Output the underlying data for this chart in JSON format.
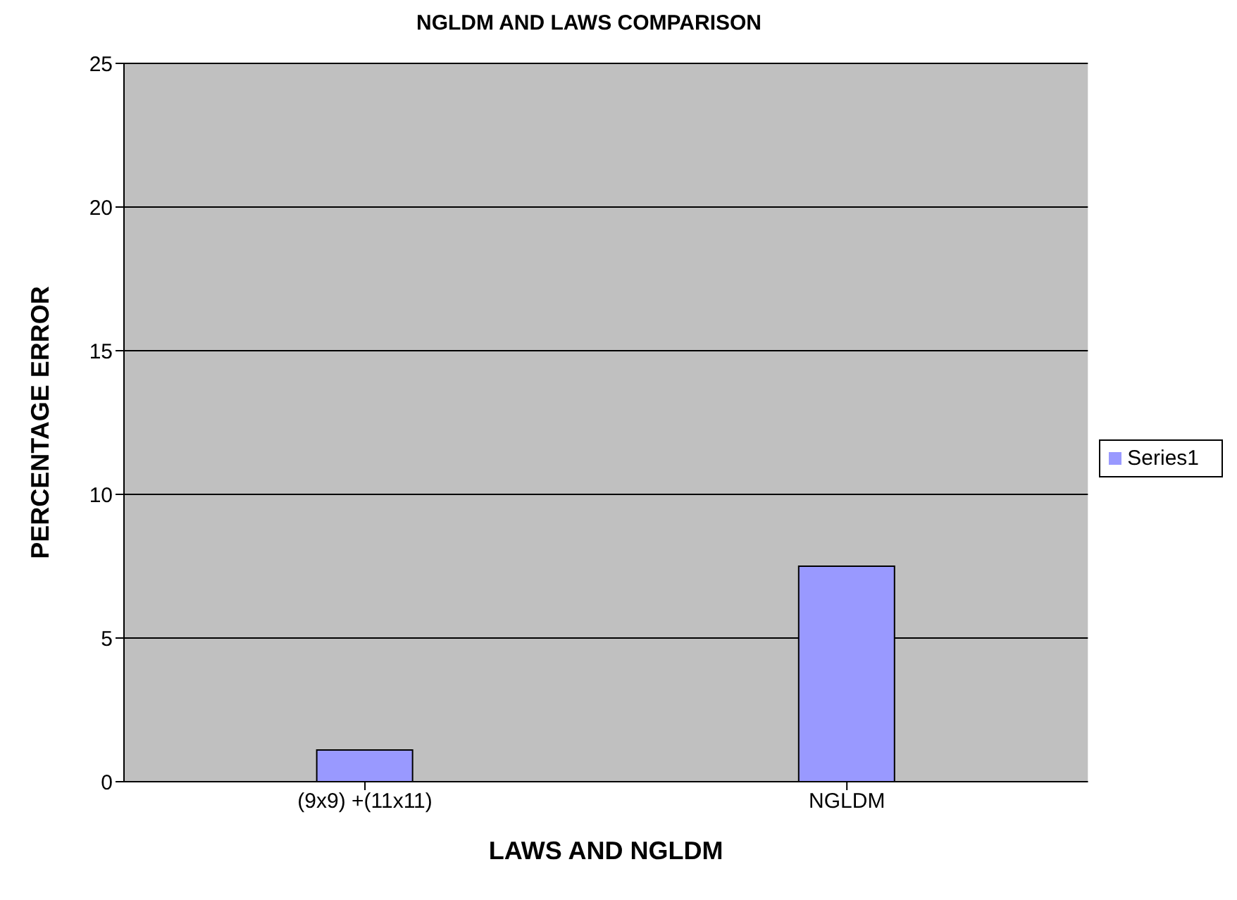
{
  "chart_data": {
    "type": "bar",
    "title": "NGLDM AND LAWS COMPARISON",
    "xlabel": "LAWS AND NGLDM",
    "ylabel": "PERCENTAGE ERROR",
    "categories": [
      "(9x9) +(11x11)",
      "NGLDM"
    ],
    "series": [
      {
        "name": "Series1",
        "color": "#9999ff",
        "values": [
          1.1,
          7.5
        ]
      }
    ],
    "ylim": [
      0,
      25
    ],
    "yticks": [
      0,
      5,
      10,
      15,
      20,
      25
    ],
    "grid": "y",
    "legend": "right"
  }
}
